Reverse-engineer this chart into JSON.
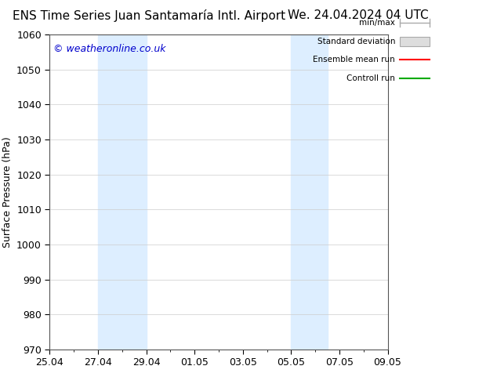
{
  "title_left": "ENS Time Series Juan Santamaría Intl. Airport",
  "title_right": "We. 24.04.2024 04 UTC",
  "ylabel": "Surface Pressure (hPa)",
  "ylim": [
    970,
    1060
  ],
  "yticks": [
    970,
    980,
    990,
    1000,
    1010,
    1020,
    1030,
    1040,
    1050,
    1060
  ],
  "x_start": 0,
  "x_end": 14,
  "xtick_labels": [
    "25.04",
    "27.04",
    "29.04",
    "01.05",
    "03.05",
    "05.05",
    "07.05",
    "09.05"
  ],
  "xtick_positions": [
    0,
    2,
    4,
    6,
    8,
    10,
    12,
    14
  ],
  "shade_bands": [
    {
      "xmin": 2,
      "xmax": 4
    },
    {
      "xmin": 10,
      "xmax": 11.5
    }
  ],
  "shade_color": "#ddeeff",
  "watermark": "© weatheronline.co.uk",
  "legend_entries": [
    "min/max",
    "Standard deviation",
    "Ensemble mean run",
    "Controll run"
  ],
  "legend_line_colors": [
    "#aaaaaa",
    "#cccccc",
    "#ff0000",
    "#00aa00"
  ],
  "background_color": "#ffffff",
  "grid_color": "#cccccc",
  "title_fontsize": 11,
  "axis_fontsize": 9,
  "watermark_color": "#0000cc",
  "watermark_fontsize": 9
}
